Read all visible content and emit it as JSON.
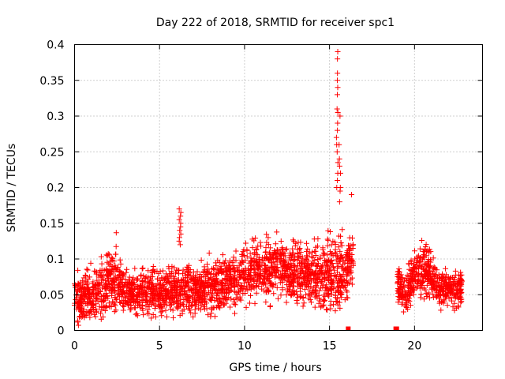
{
  "chart_data": {
    "type": "scatter",
    "title": "Day 222 of 2018, SRMTID for receiver spc1",
    "xlabel": "GPS time / hours",
    "ylabel": "SRMTID / TECUs",
    "xlim": [
      0,
      24
    ],
    "ylim": [
      0,
      0.4
    ],
    "x_ticks": [
      0,
      5,
      10,
      15,
      20
    ],
    "x_tick_labels": [
      "0",
      "5",
      "10",
      "15",
      "20"
    ],
    "y_ticks": [
      0,
      0.05,
      0.1,
      0.15,
      0.2,
      0.25,
      0.3,
      0.35,
      0.4
    ],
    "y_tick_labels": [
      "0",
      "0.05",
      "0.1",
      "0.15",
      "0.2",
      "0.25",
      "0.3",
      "0.35",
      "0.4"
    ],
    "grid": true,
    "marker": "+",
    "series": [
      {
        "name": "SRMTID",
        "color": "#ff0000",
        "segments": [
          {
            "x_start": 0.0,
            "x_end": 16.4,
            "envelope": [
              [
                0.0,
                0.0,
                0.09
              ],
              [
                0.5,
                0.0,
                0.09
              ],
              [
                1.0,
                0.0,
                0.1
              ],
              [
                1.5,
                0.0,
                0.11
              ],
              [
                2.0,
                0.0,
                0.13
              ],
              [
                2.5,
                0.005,
                0.14
              ],
              [
                3.0,
                0.01,
                0.1
              ],
              [
                3.5,
                0.01,
                0.09
              ],
              [
                4.0,
                0.01,
                0.1
              ],
              [
                4.5,
                0.01,
                0.1
              ],
              [
                5.0,
                0.01,
                0.1
              ],
              [
                5.5,
                0.01,
                0.1
              ],
              [
                6.0,
                0.01,
                0.1
              ],
              [
                6.5,
                0.01,
                0.11
              ],
              [
                7.0,
                0.01,
                0.1
              ],
              [
                7.5,
                0.01,
                0.11
              ],
              [
                8.0,
                0.01,
                0.11
              ],
              [
                8.5,
                0.01,
                0.12
              ],
              [
                9.0,
                0.02,
                0.12
              ],
              [
                9.5,
                0.02,
                0.12
              ],
              [
                10.0,
                0.02,
                0.14
              ],
              [
                10.5,
                0.03,
                0.14
              ],
              [
                11.0,
                0.03,
                0.14
              ],
              [
                11.5,
                0.03,
                0.14
              ],
              [
                12.0,
                0.03,
                0.155
              ],
              [
                12.5,
                0.03,
                0.14
              ],
              [
                13.0,
                0.02,
                0.15
              ],
              [
                13.5,
                0.02,
                0.13
              ],
              [
                14.0,
                0.02,
                0.14
              ],
              [
                14.5,
                0.01,
                0.14
              ],
              [
                15.0,
                0.0,
                0.15
              ],
              [
                15.5,
                0.01,
                0.16
              ],
              [
                16.0,
                0.02,
                0.15
              ],
              [
                16.4,
                0.06,
                0.15
              ]
            ]
          },
          {
            "x_start": 19.0,
            "x_end": 22.8,
            "envelope": [
              [
                19.0,
                0.03,
                0.1
              ],
              [
                19.5,
                0.01,
                0.09
              ],
              [
                20.0,
                0.03,
                0.12
              ],
              [
                20.5,
                0.04,
                0.14
              ],
              [
                21.0,
                0.03,
                0.12
              ],
              [
                21.5,
                0.02,
                0.09
              ],
              [
                22.0,
                0.03,
                0.09
              ],
              [
                22.5,
                0.01,
                0.1
              ],
              [
                22.8,
                0.03,
                0.09
              ]
            ]
          }
        ],
        "spikes": [
          {
            "x": 6.2,
            "values": [
              0.17,
              0.165,
              0.16,
              0.155,
              0.15,
              0.145,
              0.14,
              0.135,
              0.13,
              0.125,
              0.12
            ]
          },
          {
            "x": 15.45,
            "values": [
              0.39,
              0.38,
              0.36,
              0.35,
              0.34,
              0.33,
              0.31,
              0.305,
              0.29,
              0.28,
              0.27,
              0.26,
              0.25,
              0.235,
              0.22,
              0.21,
              0.2
            ]
          },
          {
            "x": 15.6,
            "values": [
              0.3,
              0.26,
              0.24,
              0.23,
              0.22,
              0.2,
              0.195,
              0.18
            ]
          },
          {
            "x": 16.3,
            "values": [
              0.19
            ]
          }
        ],
        "gap_markers": [
          16.1,
          18.9,
          18.95
        ]
      }
    ]
  }
}
